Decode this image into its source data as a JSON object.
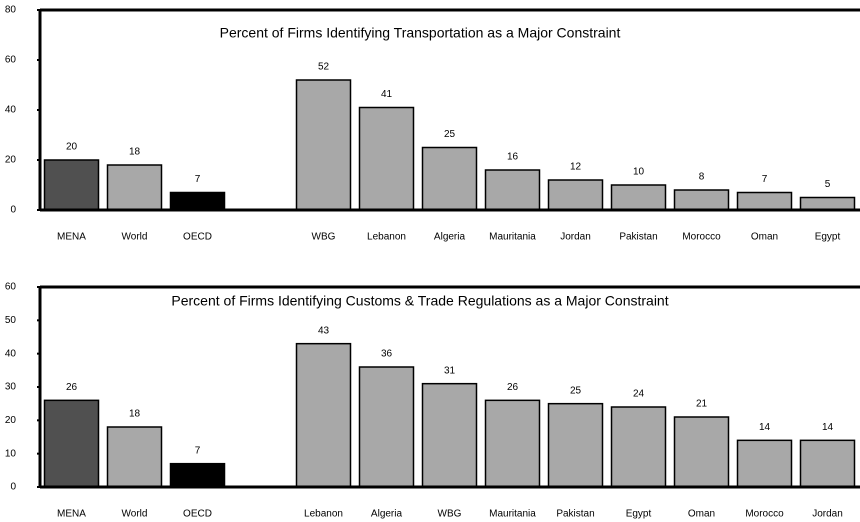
{
  "chart_data": [
    {
      "type": "bar",
      "title": "Percent of Firms Identifying Transportation as a Major Constraint",
      "categories": [
        "MENA",
        "World",
        "OECD",
        null,
        "WBG",
        "Lebanon",
        "Algeria",
        "Mauritania",
        "Jordan",
        "Pakistan",
        "Morocco",
        "Oman",
        "Egypt"
      ],
      "values": [
        20,
        18,
        7,
        null,
        52,
        41,
        25,
        16,
        12,
        10,
        8,
        7,
        5
      ],
      "colors": [
        "#505050",
        "#a8a8a8",
        "#000000",
        null,
        "#a8a8a8",
        "#a8a8a8",
        "#a8a8a8",
        "#a8a8a8",
        "#a8a8a8",
        "#a8a8a8",
        "#a8a8a8",
        "#a8a8a8",
        "#a8a8a8"
      ],
      "ylim": [
        0,
        80
      ],
      "yticks": [
        0,
        20,
        40,
        60,
        80
      ]
    },
    {
      "type": "bar",
      "title": "Percent of Firms Identifying Customs & Trade Regulations as a Major Constraint",
      "categories": [
        "MENA",
        "World",
        "OECD",
        null,
        "Lebanon",
        "Algeria",
        "WBG",
        "Mauritania",
        "Pakistan",
        "Egypt",
        "Oman",
        "Morocco",
        "Jordan"
      ],
      "values": [
        26,
        18,
        7,
        null,
        43,
        36,
        31,
        26,
        25,
        24,
        21,
        14,
        14
      ],
      "colors": [
        "#505050",
        "#a8a8a8",
        "#000000",
        null,
        "#a8a8a8",
        "#a8a8a8",
        "#a8a8a8",
        "#a8a8a8",
        "#a8a8a8",
        "#a8a8a8",
        "#a8a8a8",
        "#a8a8a8",
        "#a8a8a8"
      ],
      "ylim": [
        0,
        60
      ],
      "yticks": [
        0,
        10,
        20,
        30,
        40,
        50,
        60
      ]
    }
  ]
}
